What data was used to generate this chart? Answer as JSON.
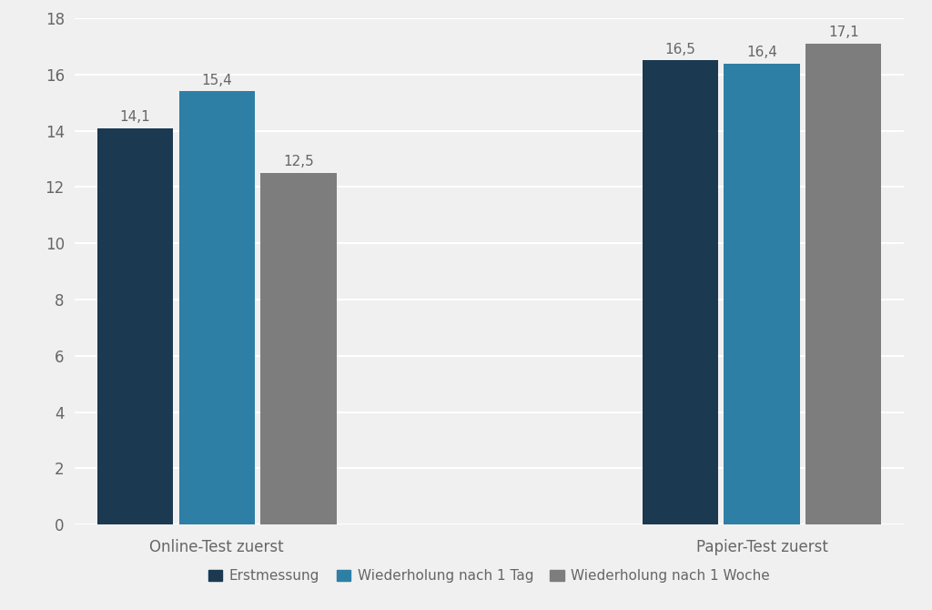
{
  "groups": [
    "Online-Test zuerst",
    "Papier-Test zuerst"
  ],
  "series": [
    {
      "label": "Erstmessung",
      "color": "#1b3a52",
      "values": [
        14.1,
        16.5
      ]
    },
    {
      "label": "Wiederholung nach 1 Tag",
      "color": "#2e7fa6",
      "values": [
        15.4,
        16.4
      ]
    },
    {
      "label": "Wiederholung nach 1 Woche",
      "color": "#7d7d7d",
      "values": [
        12.5,
        17.1
      ]
    }
  ],
  "ylim": [
    0,
    18
  ],
  "yticks": [
    0,
    2,
    4,
    6,
    8,
    10,
    12,
    14,
    16,
    18
  ],
  "background_color": "#f0f0f0",
  "bar_width": 0.25,
  "group_centers": [
    1.0,
    2.8
  ],
  "label_fontsize": 12,
  "tick_fontsize": 12,
  "legend_fontsize": 11,
  "value_label_fontsize": 11,
  "value_label_color": "#666666",
  "tick_color": "#666666",
  "grid_color": "#ffffff",
  "grid_linewidth": 1.5
}
